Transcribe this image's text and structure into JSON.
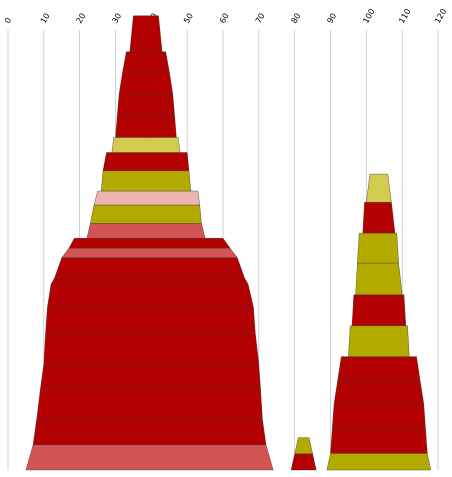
{
  "chart_data": {
    "type": "bar",
    "subtype": "stacked-pyramid",
    "title": "",
    "xlabel": "",
    "ylabel": "",
    "xlim": [
      0,
      120
    ],
    "x_ticks": [
      0,
      10,
      20,
      30,
      40,
      50,
      60,
      70,
      80,
      90,
      100,
      110,
      120
    ],
    "x_tick_labels": [
      "0",
      "10",
      "20",
      "30",
      "40",
      "50",
      "60",
      "70",
      "80",
      "90",
      "100",
      "110",
      "120"
    ],
    "grid": "vertical",
    "legend": "none",
    "colors": {
      "dark_red": "#b30000",
      "olive": "#b3aa00",
      "light_olive": "#d2cb4f",
      "salmon": "#d35454",
      "pink": "#f0b3b3",
      "grid": "#b3b3b3"
    },
    "stacks": [
      {
        "name": "",
        "layers": [
          {
            "bottom": {
              "left": 5,
              "right": 74
            },
            "top": {
              "left": 7,
              "right": 72
            },
            "height": 7,
            "color": "salmon"
          },
          {
            "bottom": {
              "left": 7,
              "right": 72
            },
            "top": {
              "left": 8,
              "right": 71
            },
            "height": 7.2,
            "color": "dark_red"
          },
          {
            "bottom": {
              "left": 8,
              "right": 71
            },
            "top": {
              "left": 9,
              "right": 70.5
            },
            "height": 8.1,
            "color": "dark_red"
          },
          {
            "bottom": {
              "left": 9,
              "right": 70.5
            },
            "top": {
              "left": 10,
              "right": 70
            },
            "height": 7.2,
            "color": "dark_red"
          },
          {
            "bottom": {
              "left": 10,
              "right": 70
            },
            "top": {
              "left": 10.5,
              "right": 69
            },
            "height": 8.8,
            "color": "dark_red"
          },
          {
            "bottom": {
              "left": 10.5,
              "right": 69
            },
            "top": {
              "left": 11,
              "right": 68.5
            },
            "height": 6.9,
            "color": "dark_red"
          },
          {
            "bottom": {
              "left": 11,
              "right": 68.5
            },
            "top": {
              "left": 12,
              "right": 67
            },
            "height": 6.4,
            "color": "dark_red"
          },
          {
            "bottom": {
              "left": 12,
              "right": 67
            },
            "top": {
              "left": 13,
              "right": 66
            },
            "height": 1.8,
            "color": "dark_red"
          },
          {
            "bottom": {
              "left": 13,
              "right": 66
            },
            "top": {
              "left": 15,
              "right": 64
            },
            "height": 5.6,
            "color": "dark_red"
          },
          {
            "bottom": {
              "left": 15,
              "right": 64
            },
            "top": {
              "left": 17,
              "right": 62
            },
            "height": 2.6,
            "color": "salmon"
          },
          {
            "bottom": {
              "left": 17,
              "right": 62
            },
            "top": {
              "left": 18.5,
              "right": 60
            },
            "height": 2.8,
            "color": "dark_red"
          },
          {
            "bottom": {
              "left": 22,
              "right": 55
            },
            "top": {
              "left": 23,
              "right": 54
            },
            "height": 4.1,
            "color": "salmon"
          },
          {
            "bottom": {
              "left": 23,
              "right": 54
            },
            "top": {
              "left": 24,
              "right": 53.5
            },
            "height": 5.1,
            "color": "olive"
          },
          {
            "bottom": {
              "left": 24,
              "right": 53.5
            },
            "top": {
              "left": 25,
              "right": 53
            },
            "height": 3.9,
            "color": "pink"
          },
          {
            "bottom": {
              "left": 26,
              "right": 51
            },
            "top": {
              "left": 26.5,
              "right": 50.5
            },
            "height": 5.6,
            "color": "olive"
          },
          {
            "bottom": {
              "left": 26.5,
              "right": 50.5
            },
            "top": {
              "left": 27.5,
              "right": 50
            },
            "height": 5.1,
            "color": "dark_red"
          },
          {
            "bottom": {
              "left": 29,
              "right": 48
            },
            "top": {
              "left": 29.5,
              "right": 47.5
            },
            "height": 4.2,
            "color": "light_olive"
          },
          {
            "bottom": {
              "left": 30,
              "right": 47
            },
            "top": {
              "left": 30.5,
              "right": 46.5
            },
            "height": 6.1,
            "color": "dark_red"
          },
          {
            "bottom": {
              "left": 30.5,
              "right": 46.5
            },
            "top": {
              "left": 31,
              "right": 46
            },
            "height": 5.9,
            "color": "dark_red"
          },
          {
            "bottom": {
              "left": 31,
              "right": 46
            },
            "top": {
              "left": 32,
              "right": 45
            },
            "height": 6.3,
            "color": "dark_red"
          },
          {
            "bottom": {
              "left": 32,
              "right": 45
            },
            "top": {
              "left": 33,
              "right": 44
            },
            "height": 5.5,
            "color": "dark_red"
          },
          {
            "bottom": {
              "left": 34,
              "right": 43
            },
            "top": {
              "left": 35,
              "right": 42
            },
            "height": 10,
            "color": "dark_red"
          }
        ]
      },
      {
        "name": "",
        "layers": [
          {
            "bottom": {
              "left": 79,
              "right": 86
            },
            "top": {
              "left": 80,
              "right": 85
            },
            "height": 4.5,
            "color": "dark_red"
          },
          {
            "bottom": {
              "left": 80,
              "right": 85
            },
            "top": {
              "left": 81,
              "right": 84
            },
            "height": 4.5,
            "color": "olive"
          }
        ]
      },
      {
        "name": "",
        "layers": [
          {
            "bottom": {
              "left": 89,
              "right": 118
            },
            "top": {
              "left": 90,
              "right": 117
            },
            "height": 4.6,
            "color": "olive"
          },
          {
            "bottom": {
              "left": 90,
              "right": 117
            },
            "top": {
              "left": 90.5,
              "right": 116.5
            },
            "height": 7.1,
            "color": "dark_red"
          },
          {
            "bottom": {
              "left": 90.5,
              "right": 116.5
            },
            "top": {
              "left": 91,
              "right": 116
            },
            "height": 6.8,
            "color": "dark_red"
          },
          {
            "bottom": {
              "left": 91,
              "right": 116
            },
            "top": {
              "left": 92,
              "right": 115
            },
            "height": 6.4,
            "color": "dark_red"
          },
          {
            "bottom": {
              "left": 92,
              "right": 115
            },
            "top": {
              "left": 93,
              "right": 114
            },
            "height": 6.6,
            "color": "dark_red"
          },
          {
            "bottom": {
              "left": 95,
              "right": 112
            },
            "top": {
              "left": 95.5,
              "right": 111.5
            },
            "height": 8.6,
            "color": "olive"
          },
          {
            "bottom": {
              "left": 96,
              "right": 111
            },
            "top": {
              "left": 96.5,
              "right": 110.5
            },
            "height": 8.6,
            "color": "dark_red"
          },
          {
            "bottom": {
              "left": 97,
              "right": 110
            },
            "top": {
              "left": 97.5,
              "right": 109
            },
            "height": 8.8,
            "color": "olive"
          },
          {
            "bottom": {
              "left": 97.5,
              "right": 109
            },
            "top": {
              "left": 98,
              "right": 108.5
            },
            "height": 8.3,
            "color": "olive"
          },
          {
            "bottom": {
              "left": 99,
              "right": 108
            },
            "top": {
              "left": 99.5,
              "right": 107
            },
            "height": 8.6,
            "color": "dark_red"
          },
          {
            "bottom": {
              "left": 100,
              "right": 107
            },
            "top": {
              "left": 101,
              "right": 106
            },
            "height": 7.8,
            "color": "light_olive"
          }
        ]
      }
    ]
  }
}
